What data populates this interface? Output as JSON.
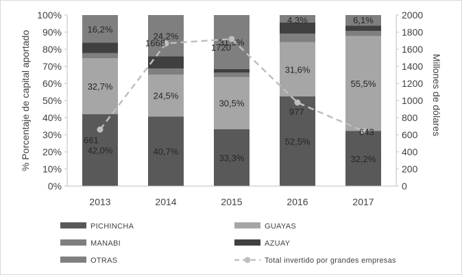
{
  "chart_data": {
    "type": "bar",
    "stacked": true,
    "categories": [
      "2013",
      "2014",
      "2015",
      "2016",
      "2017"
    ],
    "y_left": {
      "label": "% Porcentaje de capital aportado",
      "ticks": [
        "0%",
        "10%",
        "20%",
        "30%",
        "40%",
        "50%",
        "60%",
        "70%",
        "80%",
        "90%",
        "100%"
      ],
      "range": [
        0,
        100
      ]
    },
    "y_right": {
      "label": "Millones de dólares",
      "ticks": [
        "0",
        "200",
        "400",
        "600",
        "800",
        "1000",
        "1200",
        "1400",
        "1600",
        "1800",
        "2000"
      ],
      "range": [
        0,
        2000
      ]
    },
    "series": [
      {
        "name": "PICHINCHA",
        "color": "#595959",
        "values": [
          42.0,
          40.7,
          33.3,
          52.5,
          32.2
        ],
        "labels": [
          "42,0%",
          "40,7%",
          "33,3%",
          "52,5%",
          "32,2%"
        ]
      },
      {
        "name": "GUAYAS",
        "color": "#a6a6a6",
        "values": [
          32.7,
          24.5,
          30.5,
          31.6,
          55.5
        ],
        "labels": [
          "32,7%",
          "24,5%",
          "30,5%",
          "31,6%",
          "55,5%"
        ]
      },
      {
        "name": "MANABI",
        "color": "#7f7f7f",
        "values": [
          3.0,
          3.5,
          2.5,
          5.0,
          3.0
        ]
      },
      {
        "name": "AZUAY",
        "color": "#404040",
        "values": [
          6.1,
          7.1,
          2.2,
          6.6,
          3.2
        ]
      },
      {
        "name": "OTRAS",
        "color": "#7f7f7f",
        "values": [
          16.2,
          24.2,
          31.5,
          4.3,
          6.1
        ],
        "labels": [
          "16,2%",
          "24,2%",
          "31,5%",
          "4,3%",
          "6,1%"
        ]
      }
    ],
    "line": {
      "name": "Total invertido por grandes empresas",
      "axis": "right",
      "color": "#bfbfbf",
      "values": [
        661,
        1668,
        1720,
        977,
        643
      ],
      "labels": [
        "661",
        "1668",
        "1720",
        "977",
        "643"
      ]
    },
    "legend": {
      "placement": "bottom",
      "items": [
        {
          "name": "PICHINCHA",
          "kind": "bar",
          "color": "#595959"
        },
        {
          "name": "GUAYAS",
          "kind": "bar",
          "color": "#a6a6a6"
        },
        {
          "name": "MANABI",
          "kind": "bar",
          "color": "#7f7f7f"
        },
        {
          "name": "AZUAY",
          "kind": "bar",
          "color": "#404040"
        },
        {
          "name": "OTRAS",
          "kind": "bar",
          "color": "#7f7f7f"
        },
        {
          "name": "Total invertido por grandes empresas",
          "kind": "line",
          "color": "#bfbfbf"
        }
      ]
    },
    "grid": false
  }
}
